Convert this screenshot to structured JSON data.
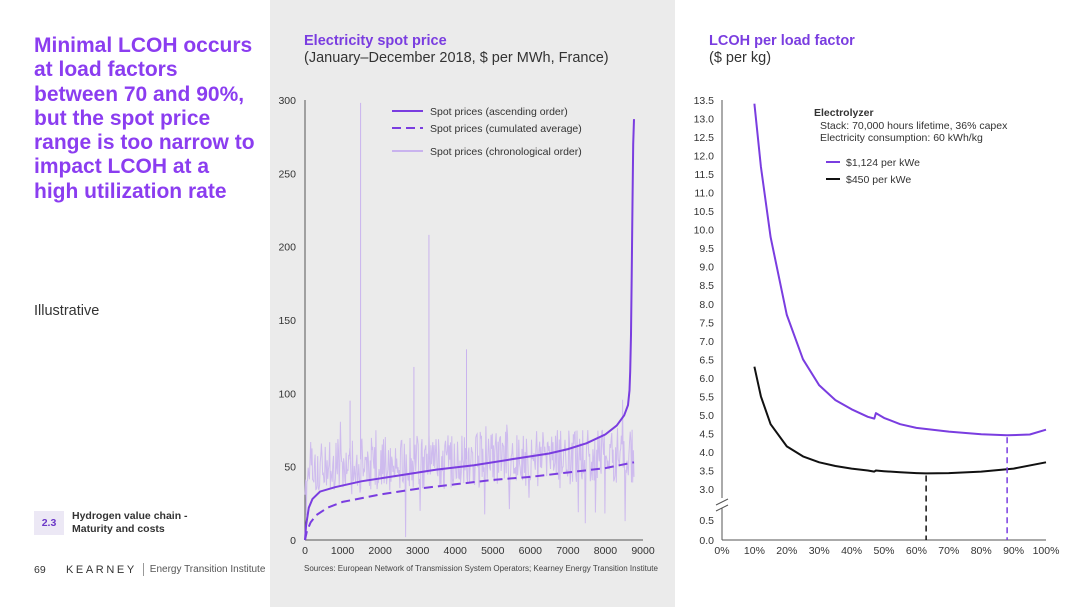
{
  "headline": "Minimal LCOH occurs at load factors between 70 and 90%, but the spot price range is too narrow to impact LCOH at a high utilization rate",
  "illustrative": "Illustrative",
  "section": {
    "number": "2.3",
    "title": "Hydrogen value chain - Maturity and costs"
  },
  "footer": {
    "page": "69",
    "brand": "KEARNEY",
    "brand_sub": "Energy Transition Institute"
  },
  "sources": "Sources: European Network of Transmission System Operators; Kearney Energy Transition Institute",
  "colors": {
    "accent": "#7a3de0",
    "purple_light": "#c9b3ee",
    "black": "#111111"
  },
  "chart_data": [
    {
      "type": "line",
      "title": "Electricity spot price",
      "subtitle": "(January–December 2018, $ per MWh, France)",
      "xlim": [
        0,
        9000
      ],
      "ylim": [
        0,
        300
      ],
      "x_ticks": [
        0,
        1000,
        2000,
        3000,
        4000,
        5000,
        6000,
        7000,
        8000,
        9000
      ],
      "y_ticks": [
        0,
        50,
        100,
        150,
        200,
        250,
        300
      ],
      "legend_position": "top",
      "series": [
        {
          "name": "Spot prices (ascending order)",
          "style": "solid",
          "color": "#7a3de0",
          "x": [
            0,
            30,
            100,
            200,
            400,
            800,
            1500,
            2500,
            3500,
            4500,
            5500,
            6500,
            7000,
            7500,
            8000,
            8300,
            8500,
            8600,
            8640,
            8660,
            8680,
            8700,
            8720,
            8740,
            8760
          ],
          "y": [
            0,
            10,
            22,
            28,
            33,
            36,
            40,
            44,
            48,
            51,
            55,
            59,
            62,
            66,
            72,
            78,
            85,
            92,
            102,
            115,
            140,
            180,
            230,
            270,
            287
          ]
        },
        {
          "name": "Spot prices (cumulated average)",
          "style": "dashed",
          "color": "#7a3de0",
          "x": [
            0,
            50,
            150,
            300,
            600,
            1000,
            2000,
            3000,
            4000,
            5000,
            6000,
            7000,
            8000,
            8760
          ],
          "y": [
            0,
            6,
            12,
            17,
            22,
            26,
            31,
            35,
            38,
            41,
            43,
            46,
            49,
            53
          ]
        },
        {
          "name": "Spot prices (chronological order)",
          "style": "light",
          "color": "#c9b3ee",
          "x": [
            0,
            8760
          ],
          "y": [
            50,
            58
          ]
        }
      ]
    },
    {
      "type": "line",
      "title": "LCOH per load factor",
      "subtitle": "($ per kg)",
      "xlim": [
        0,
        100
      ],
      "y_ticks_upper": [
        "3.0",
        "3.5",
        "4.0",
        "4.5",
        "5.0",
        "5.5",
        "6.0",
        "6.5",
        "7.0",
        "7.5",
        "8.0",
        "8.5",
        "9.0",
        "9.5",
        "10.0",
        "10.5",
        "11.0",
        "11.5",
        "12.0",
        "12.5",
        "13.0",
        "13.5"
      ],
      "y_ticks_lower": [
        "0.0",
        "0.5"
      ],
      "x_ticks": [
        "0%",
        "10%",
        "20%",
        "30%",
        "40%",
        "50%",
        "60%",
        "70%",
        "80%",
        "90%",
        "100%"
      ],
      "annotation": {
        "title": "Electrolyzer",
        "lines": [
          "Stack: 70,000 hours lifetime, 36% capex",
          "Electricity consumption: 60 kWh/kg"
        ]
      },
      "series": [
        {
          "name": "$1,124 per kWe",
          "color": "#7a3de0",
          "x": [
            10,
            12,
            15,
            20,
            25,
            30,
            35,
            40,
            45,
            47,
            47.5,
            50,
            55,
            60,
            70,
            80,
            88,
            95,
            100
          ],
          "y": [
            13.4,
            11.7,
            9.8,
            7.7,
            6.5,
            5.8,
            5.4,
            5.15,
            4.95,
            4.9,
            5.05,
            4.92,
            4.75,
            4.65,
            4.55,
            4.48,
            4.45,
            4.47,
            4.6
          ]
        },
        {
          "name": "$450 per kWe",
          "color": "#111111",
          "x": [
            10,
            12,
            15,
            20,
            25,
            30,
            35,
            40,
            45,
            47,
            47.5,
            50,
            55,
            60,
            63,
            70,
            80,
            90,
            100
          ],
          "y": [
            6.3,
            5.5,
            4.75,
            4.15,
            3.88,
            3.72,
            3.62,
            3.55,
            3.5,
            3.47,
            3.5,
            3.48,
            3.45,
            3.43,
            3.42,
            3.43,
            3.47,
            3.55,
            3.72
          ]
        }
      ],
      "minimum_markers": [
        {
          "series": "$450 per kWe",
          "x": 63,
          "color": "#111111"
        },
        {
          "series": "$1,124 per kWe",
          "x": 88,
          "color": "#7a3de0"
        }
      ]
    }
  ]
}
